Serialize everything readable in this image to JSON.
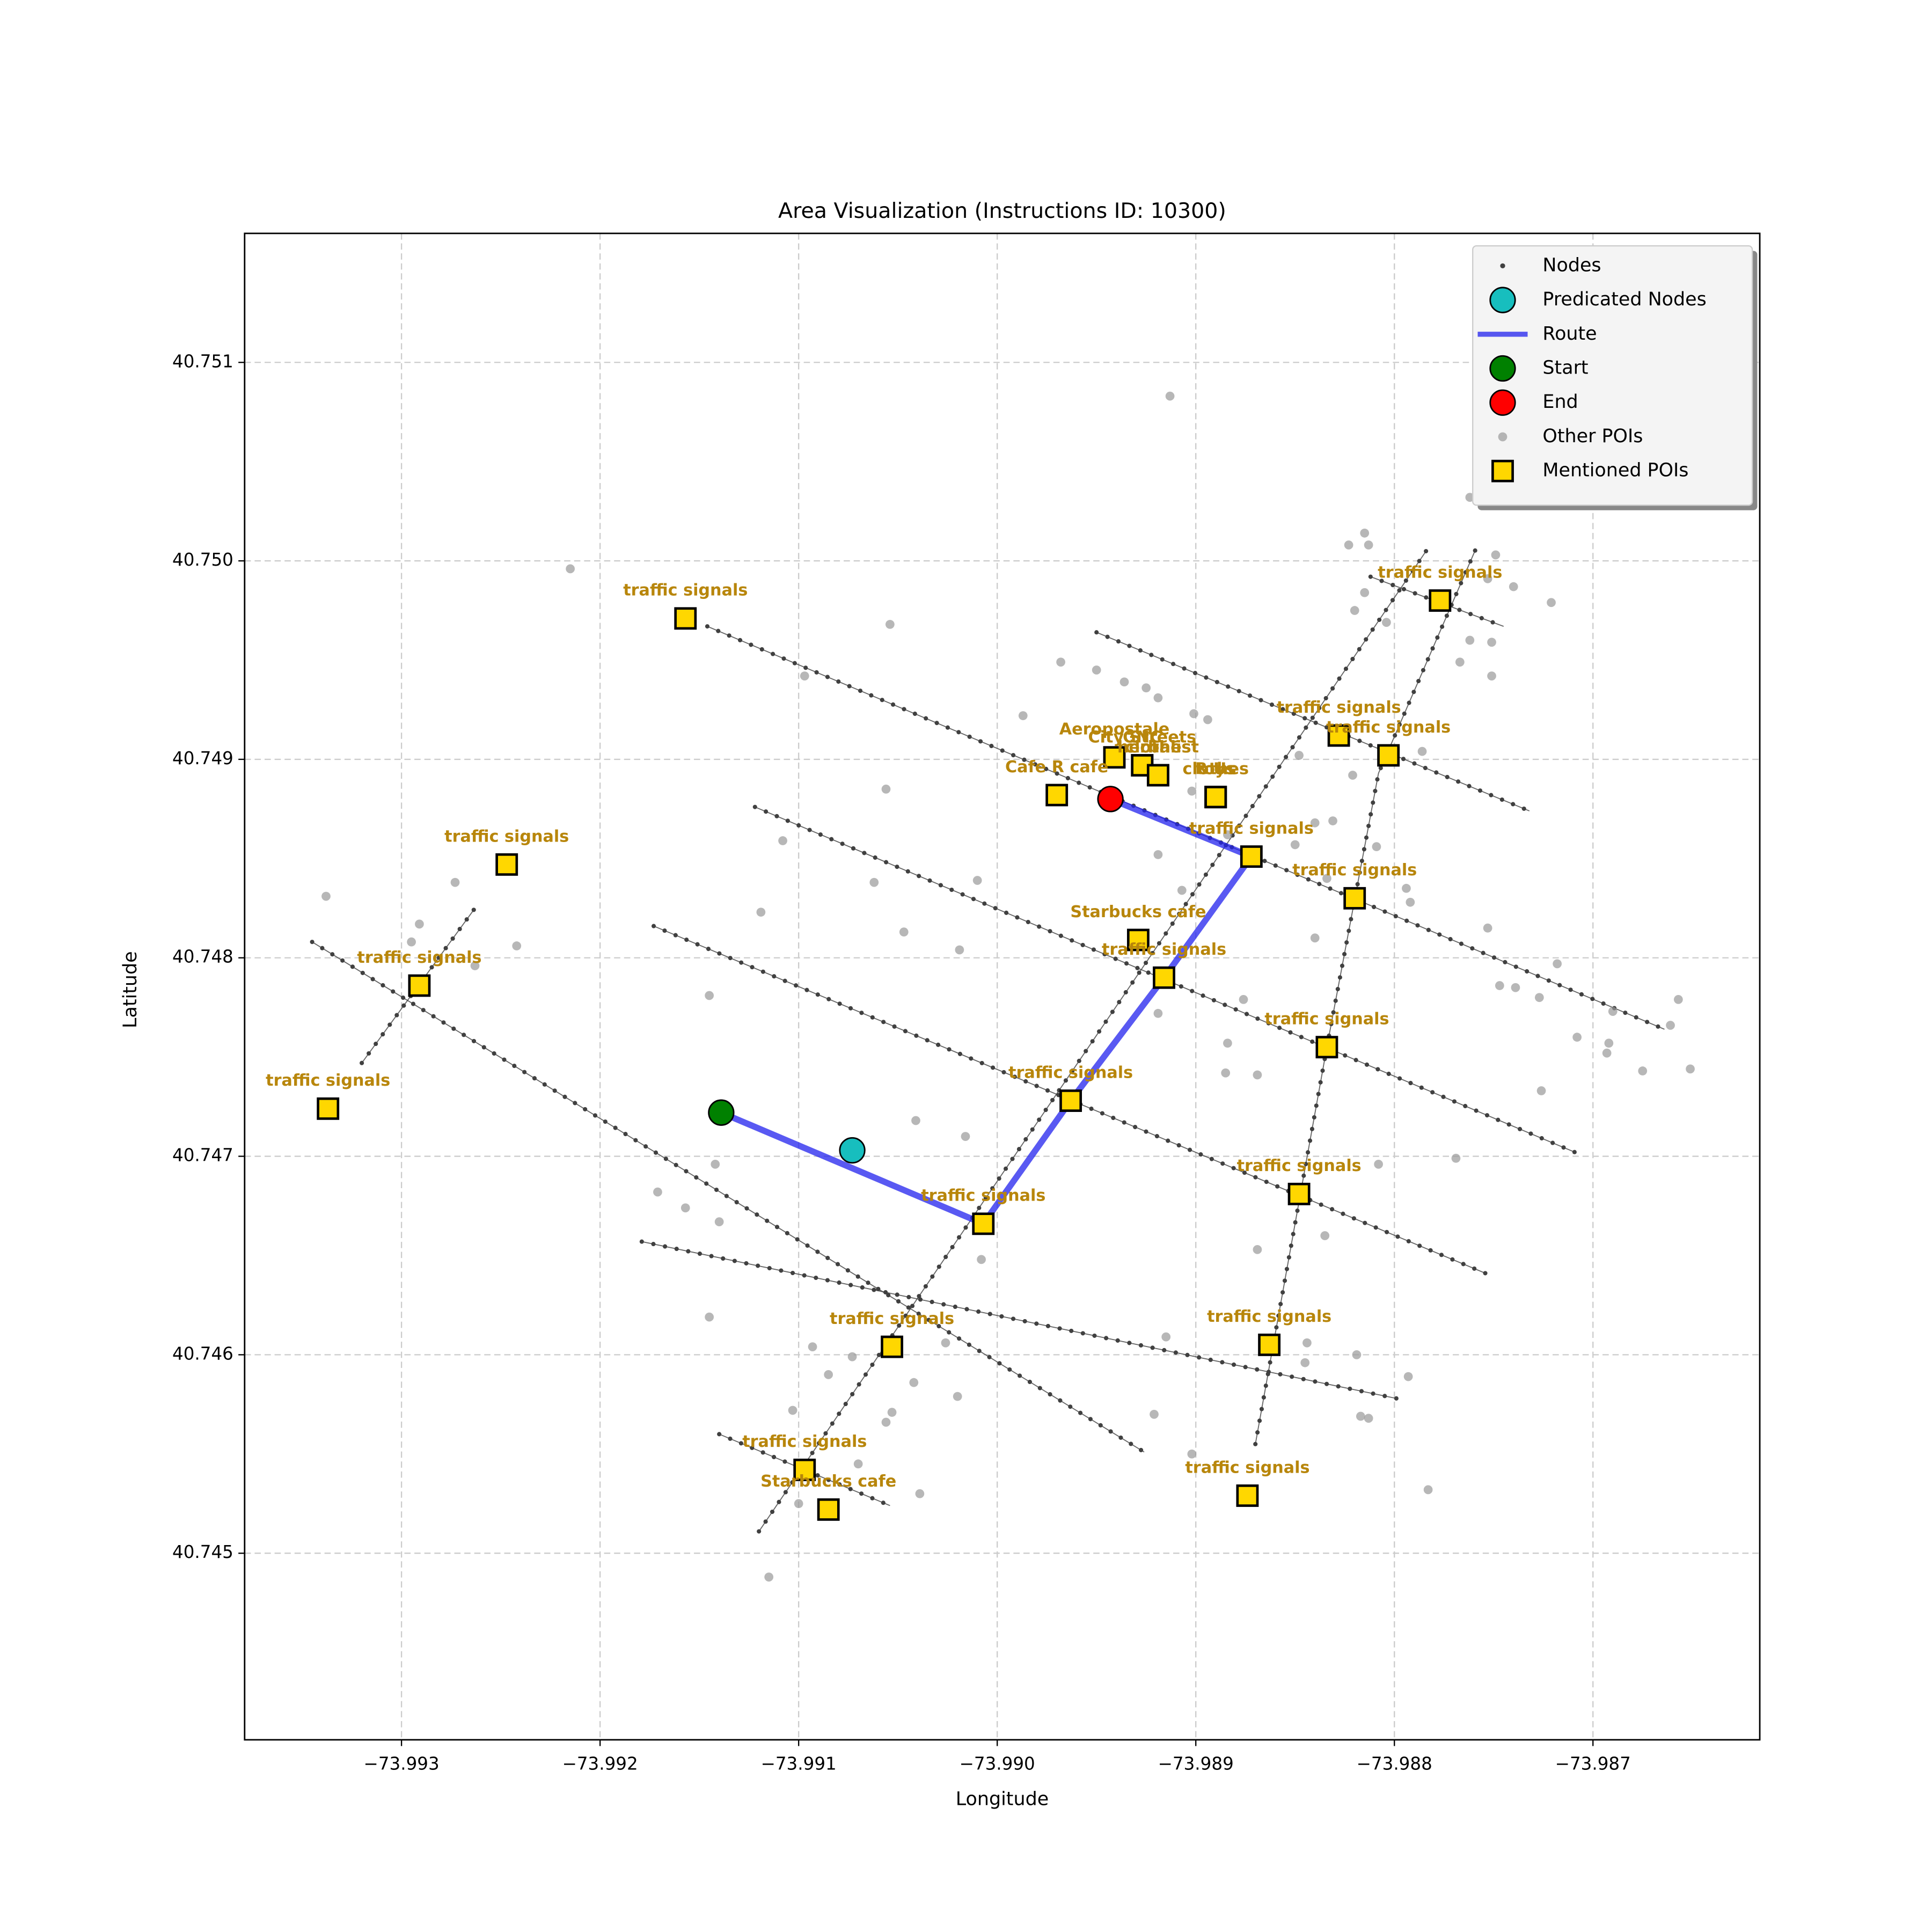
{
  "chart_data": {
    "type": "scatter",
    "title": "Area Visualization (Instructions ID: 10300)",
    "xlabel": "Longitude",
    "ylabel": "Latitude",
    "xlim": [
      -73.99379,
      -73.98616
    ],
    "ylim": [
      40.74406,
      40.75165
    ],
    "xticks": [
      {
        "value": -73.993,
        "label": "−73.993"
      },
      {
        "value": -73.992,
        "label": "−73.992"
      },
      {
        "value": -73.991,
        "label": "−73.991"
      },
      {
        "value": -73.99,
        "label": "−73.990"
      },
      {
        "value": -73.989,
        "label": "−73.989"
      },
      {
        "value": -73.988,
        "label": "−73.988"
      },
      {
        "value": -73.987,
        "label": "−73.987"
      }
    ],
    "yticks": [
      40.745,
      40.746,
      40.747,
      40.748,
      40.749,
      {
        "value": 40.75,
        "label": "40.750"
      },
      40.751
    ],
    "grid": true,
    "legend": "upper right",
    "series": [
      {
        "name": "Nodes",
        "color": "#404040",
        "marker": "network",
        "segments": [
          {
            "x": [
              -73.99146,
              -73.98664
            ],
            "y": [
              40.74967,
              40.74764
            ]
          },
          {
            "x": [
              -73.9895,
              -73.98732
            ],
            "y": [
              40.74964,
              40.74874
            ]
          },
          {
            "x": [
              -73.99122,
              -73.98709
            ],
            "y": [
              40.74876,
              40.74702
            ]
          },
          {
            "x": [
              -73.99173,
              -73.98754
            ],
            "y": [
              40.74816,
              40.74641
            ]
          },
          {
            "x": [
              -73.99179,
              -73.98799
            ],
            "y": [
              40.74657,
              40.74578
            ]
          },
          {
            "x": [
              -73.9914,
              -73.99054
            ],
            "y": [
              40.7456,
              40.74524
            ]
          },
          {
            "x": [
              -73.99345,
              -73.98926
            ],
            "y": [
              40.74808,
              40.74551
            ]
          },
          {
            "x": [
              -73.9912,
              -73.98784
            ],
            "y": [
              40.74511,
              40.75005
            ]
          },
          {
            "x": [
              -73.9887,
              -73.98834,
              -73.98808,
              -73.98759
            ],
            "y": [
              40.74555,
              40.74755,
              40.74893,
              40.75006
            ]
          },
          {
            "x": [
              -73.9932,
              -73.99263
            ],
            "y": [
              40.74747,
              40.74825
            ]
          },
          {
            "x": [
              -73.98812,
              -73.98745
            ],
            "y": [
              40.74992,
              40.74967
            ]
          }
        ]
      },
      {
        "name": "Predicated Nodes",
        "color": "#17bebe",
        "marker": "circle",
        "x": [
          -73.99073
        ],
        "y": [
          40.74703
        ]
      },
      {
        "name": "Route",
        "color": "#2222ee",
        "marker": "line",
        "x": [
          -73.99139,
          -73.99007,
          -73.98963,
          -73.98916,
          -73.98872,
          -73.98943
        ],
        "y": [
          40.74722,
          40.74666,
          40.74728,
          40.7479,
          40.74851,
          40.7488
        ]
      },
      {
        "name": "Start",
        "color": "#008000",
        "marker": "circle",
        "x": [
          -73.99139
        ],
        "y": [
          40.74722
        ]
      },
      {
        "name": "End",
        "color": "#ff0000",
        "marker": "circle",
        "x": [
          -73.98943
        ],
        "y": [
          40.7488
        ]
      },
      {
        "name": "Other POIs",
        "color": "#999999",
        "marker": "dot",
        "x": [
          -73.98913,
          -73.99215,
          -73.99338,
          -73.99295,
          -73.99291,
          -73.99273,
          -73.99263,
          -73.99242,
          -73.99145,
          -73.99119,
          -73.99108,
          -73.99097,
          -73.99054,
          -73.99056,
          -73.99062,
          -73.99047,
          -73.99019,
          -73.9901,
          -73.99171,
          -73.99157,
          -73.9914,
          -73.99142,
          -73.99145,
          -73.99041,
          -73.99016,
          -73.99008,
          -73.99093,
          -73.99085,
          -73.99073,
          -73.99042,
          -73.99026,
          -73.9902,
          -73.99053,
          -73.99056,
          -73.9907,
          -73.99039,
          -73.991,
          -73.99115,
          -73.99103,
          -73.98987,
          -73.98968,
          -73.9895,
          -73.98936,
          -73.98925,
          -73.98919,
          -73.98901,
          -73.98894,
          -73.98919,
          -73.98907,
          -73.98902,
          -73.98884,
          -73.98919,
          -73.98876,
          -73.98884,
          -73.98869,
          -73.9884,
          -73.98834,
          -73.9885,
          -73.9884,
          -73.98831,
          -73.98809,
          -73.98794,
          -73.98792,
          -73.98786,
          -73.98821,
          -73.98848,
          -73.98823,
          -73.98815,
          -73.98813,
          -73.9882,
          -73.98815,
          -73.98804,
          -73.98762,
          -73.98749,
          -73.98753,
          -73.9874,
          -73.98721,
          -73.98762,
          -73.98751,
          -73.98767,
          -73.98751,
          -73.98753,
          -73.98747,
          -73.98739,
          -73.98727,
          -73.98718,
          -73.98708,
          -73.98692,
          -73.98693,
          -73.9869,
          -73.98675,
          -73.98657,
          -73.98661,
          -73.98651,
          -73.98726,
          -73.98808,
          -73.98769,
          -73.98835,
          -73.98819,
          -73.98844,
          -73.98845,
          -73.98817,
          -73.98813,
          -73.98793,
          -73.98783,
          -73.98902,
          -73.98921,
          -73.98915,
          -73.98869,
          -73.98885
        ],
        "y": [
          40.75083,
          40.74996,
          40.74831,
          40.74808,
          40.74817,
          40.74838,
          40.74796,
          40.74806,
          40.74781,
          40.74823,
          40.74859,
          40.74942,
          40.74968,
          40.74885,
          40.74838,
          40.74813,
          40.74804,
          40.74839,
          40.74682,
          40.74674,
          40.74667,
          40.74696,
          40.74619,
          40.74718,
          40.7471,
          40.74648,
          40.74604,
          40.7459,
          40.74599,
          40.74586,
          40.74606,
          40.74579,
          40.74571,
          40.74566,
          40.74545,
          40.7453,
          40.74525,
          40.74488,
          40.74572,
          40.74922,
          40.74949,
          40.74945,
          40.74939,
          40.74936,
          40.74931,
          40.74923,
          40.7492,
          40.74852,
          40.74834,
          40.74884,
          40.74862,
          40.74772,
          40.74779,
          40.74757,
          40.74741,
          40.7481,
          40.7484,
          40.74857,
          40.74868,
          40.74869,
          40.74856,
          40.74835,
          40.74828,
          40.74904,
          40.74892,
          40.74902,
          40.75008,
          40.75014,
          40.75008,
          40.74975,
          40.74984,
          40.74969,
          40.75032,
          40.75003,
          40.74991,
          40.74987,
          40.74979,
          40.7496,
          40.74959,
          40.74949,
          40.74942,
          40.74815,
          40.74786,
          40.74785,
          40.7478,
          40.74797,
          40.7476,
          40.74757,
          40.74752,
          40.74773,
          40.74743,
          40.74779,
          40.74766,
          40.74744,
          40.74733,
          40.74696,
          40.74699,
          40.7466,
          40.746,
          40.74606,
          40.74596,
          40.74569,
          40.74568,
          40.74589,
          40.74532,
          40.7455,
          40.7457,
          40.74609,
          40.74653,
          40.74742
        ]
      },
      {
        "name": "Mentioned POIs",
        "color": "#ffd700",
        "label_color": "#b8860b",
        "marker": "square",
        "x": [
          -73.99157,
          -73.99247,
          -73.99291,
          -73.99337,
          -73.99007,
          -73.98963,
          -73.98916,
          -73.98929,
          -73.98872,
          -73.9897,
          -73.98941,
          -73.98927,
          -73.98927,
          -73.98919,
          -73.98919,
          -73.9889,
          -73.9889,
          -73.9889,
          -73.98828,
          -73.98803,
          -73.98777,
          -73.9882,
          -73.98834,
          -73.98848,
          -73.98863,
          -73.98874,
          -73.99053,
          -73.99097,
          -73.99085
        ],
        "y": [
          40.74971,
          40.74847,
          40.74786,
          40.74724,
          40.74666,
          40.74728,
          40.7479,
          40.74809,
          40.74851,
          40.74882,
          40.74901,
          40.74897,
          40.74897,
          40.74892,
          40.74892,
          40.74881,
          40.74881,
          40.74881,
          40.74912,
          40.74902,
          40.7498,
          40.7483,
          40.74755,
          40.74681,
          40.74605,
          40.74529,
          40.74604,
          40.74542,
          40.74522
        ],
        "labels": [
          "traffic signals",
          "traffic signals",
          "traffic signals",
          "traffic signals",
          "traffic signals",
          "traffic signals",
          "traffic signals",
          "Starbucks cafe",
          "traffic signals",
          "Cafe R cafe",
          "Aeropostale",
          "City Streets",
          "GNC",
          "herbalist",
          "clothes",
          "clothes",
          "R Us",
          "toys",
          "traffic signals",
          "traffic signals",
          "traffic signals",
          "traffic signals",
          "traffic signals",
          "traffic signals",
          "traffic signals",
          "traffic signals",
          "traffic signals",
          "traffic signals",
          "Starbucks cafe"
        ]
      }
    ]
  }
}
